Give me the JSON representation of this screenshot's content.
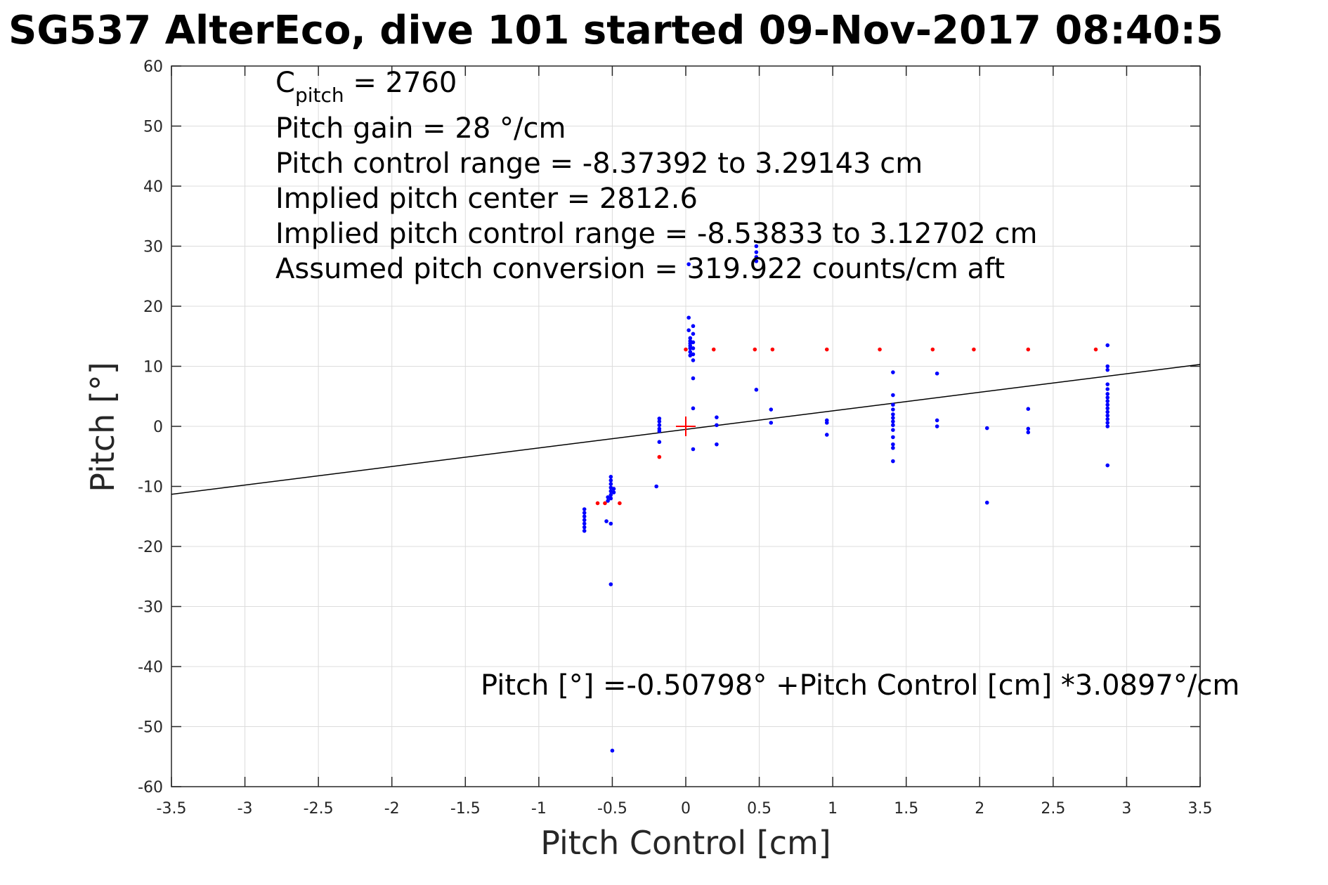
{
  "title": "SG537 AlterEco, dive 101 started 09-Nov-2017 08:40:5",
  "chart_data": {
    "type": "scatter",
    "xlabel": "Pitch Control [cm]",
    "ylabel": "Pitch [°]",
    "xlim": [
      -3.5,
      3.5
    ],
    "ylim": [
      -60,
      60
    ],
    "xticks": [
      "-3.5",
      "-3",
      "-2.5",
      "-2",
      "-1.5",
      "-1",
      "-0.5",
      "0",
      "0.5",
      "1",
      "1.5",
      "2",
      "2.5",
      "3",
      "3.5"
    ],
    "yticks": [
      "60",
      "50",
      "40",
      "30",
      "20",
      "10",
      "0",
      "-10",
      "-20",
      "-30",
      "-40",
      "-50",
      "-60"
    ],
    "grid": true,
    "annotations": {
      "cpitch_main": "C",
      "cpitch_sub": "pitch",
      "cpitch_rest": " = 2760",
      "gain": "Pitch gain = 28 °/cm",
      "range": "Pitch control range = -8.37392 to 3.29143 cm",
      "center": "Implied pitch center = 2812.6",
      "implied_range": "Implied pitch control range = -8.53833 to 3.12702 cm",
      "conversion": "Assumed pitch conversion = 319.922 counts/cm aft",
      "fit": "Pitch [°] =-0.50798° +Pitch Control [cm] *3.0897°/cm"
    },
    "fit_line": {
      "intercept": -0.50798,
      "slope": 3.0897,
      "color": "#000000"
    },
    "center_marker": {
      "x": 0,
      "y": 0,
      "color": "#ff0000"
    },
    "series": [
      {
        "color": "#0000ff",
        "points": [
          [
            -0.69,
            -13.8
          ],
          [
            -0.69,
            -14.4
          ],
          [
            -0.69,
            -15.0
          ],
          [
            -0.69,
            -15.6
          ],
          [
            -0.69,
            -16.2
          ],
          [
            -0.69,
            -16.8
          ],
          [
            -0.69,
            -17.4
          ],
          [
            -0.53,
            -11.8
          ],
          [
            -0.53,
            -12.4
          ],
          [
            -0.54,
            -15.8
          ],
          [
            -0.51,
            -8.4
          ],
          [
            -0.51,
            -9.0
          ],
          [
            -0.51,
            -9.6
          ],
          [
            -0.51,
            -10.2
          ],
          [
            -0.51,
            -10.8
          ],
          [
            -0.51,
            -11.4
          ],
          [
            -0.51,
            -12.0
          ],
          [
            -0.49,
            -10.4
          ],
          [
            -0.49,
            -11.0
          ],
          [
            -0.51,
            -16.2
          ],
          [
            -0.51,
            -26.3
          ],
          [
            -0.5,
            -54.0
          ],
          [
            -0.18,
            1.3
          ],
          [
            -0.18,
            0.8
          ],
          [
            -0.18,
            0.2
          ],
          [
            -0.18,
            -0.4
          ],
          [
            -0.18,
            -0.8
          ],
          [
            -0.18,
            -2.6
          ],
          [
            -0.2,
            -10.0
          ],
          [
            0.02,
            18.1
          ],
          [
            0.02,
            16.0
          ],
          [
            0.03,
            14.7
          ],
          [
            0.03,
            14.2
          ],
          [
            0.03,
            13.8
          ],
          [
            0.03,
            13.4
          ],
          [
            0.03,
            13.0
          ],
          [
            0.03,
            12.4
          ],
          [
            0.03,
            11.8
          ],
          [
            0.05,
            16.7
          ],
          [
            0.05,
            15.4
          ],
          [
            0.05,
            14.0
          ],
          [
            0.05,
            13.0
          ],
          [
            0.05,
            12.0
          ],
          [
            0.05,
            11.0
          ],
          [
            0.02,
            27.0
          ],
          [
            0.05,
            8.0
          ],
          [
            0.05,
            3.0
          ],
          [
            0.05,
            -3.8
          ],
          [
            0.21,
            1.5
          ],
          [
            0.21,
            0.2
          ],
          [
            0.21,
            -3.0
          ],
          [
            0.48,
            30.0
          ],
          [
            0.48,
            29.0
          ],
          [
            0.48,
            28.2
          ],
          [
            0.48,
            27.5
          ],
          [
            0.48,
            6.1
          ],
          [
            0.58,
            2.8
          ],
          [
            0.58,
            0.6
          ],
          [
            0.96,
            1.0
          ],
          [
            0.96,
            0.6
          ],
          [
            0.96,
            -1.4
          ],
          [
            1.41,
            9.0
          ],
          [
            1.41,
            5.2
          ],
          [
            1.41,
            3.6
          ],
          [
            1.41,
            2.8
          ],
          [
            1.41,
            2.0
          ],
          [
            1.41,
            1.4
          ],
          [
            1.41,
            0.8
          ],
          [
            1.41,
            0.2
          ],
          [
            1.41,
            -0.6
          ],
          [
            1.41,
            -1.8
          ],
          [
            1.41,
            -3.0
          ],
          [
            1.41,
            -3.6
          ],
          [
            1.41,
            -5.8
          ],
          [
            1.71,
            8.8
          ],
          [
            1.71,
            1.0
          ],
          [
            1.71,
            0.0
          ],
          [
            2.05,
            -0.3
          ],
          [
            2.05,
            -12.7
          ],
          [
            2.33,
            2.9
          ],
          [
            2.33,
            -0.4
          ],
          [
            2.33,
            -1.0
          ],
          [
            2.87,
            13.5
          ],
          [
            2.87,
            10.0
          ],
          [
            2.87,
            9.4
          ],
          [
            2.87,
            7.0
          ],
          [
            2.87,
            6.2
          ],
          [
            2.87,
            5.4
          ],
          [
            2.87,
            4.8
          ],
          [
            2.87,
            4.2
          ],
          [
            2.87,
            3.6
          ],
          [
            2.87,
            3.0
          ],
          [
            2.87,
            2.4
          ],
          [
            2.87,
            1.8
          ],
          [
            2.87,
            1.2
          ],
          [
            2.87,
            0.6
          ],
          [
            2.87,
            0.0
          ],
          [
            2.87,
            -6.5
          ]
        ]
      },
      {
        "color": "#ff0000",
        "points": [
          [
            -0.6,
            -12.8
          ],
          [
            -0.55,
            -12.8
          ],
          [
            -0.45,
            -12.8
          ],
          [
            -0.18,
            -5.1
          ],
          [
            0.0,
            12.8
          ],
          [
            0.19,
            12.8
          ],
          [
            0.47,
            12.8
          ],
          [
            0.59,
            12.8
          ],
          [
            0.96,
            12.8
          ],
          [
            1.32,
            12.8
          ],
          [
            1.68,
            12.8
          ],
          [
            1.96,
            12.8
          ],
          [
            2.33,
            12.8
          ],
          [
            2.79,
            12.8
          ]
        ]
      }
    ]
  }
}
